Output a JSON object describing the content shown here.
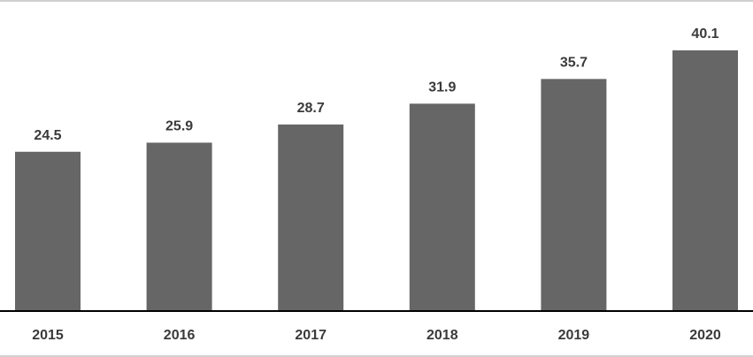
{
  "chart_data": {
    "type": "bar",
    "categories": [
      "2015",
      "2016",
      "2017",
      "2018",
      "2019",
      "2020"
    ],
    "values": [
      24.5,
      25.9,
      28.7,
      31.9,
      35.7,
      40.1
    ],
    "color": "#666666"
  }
}
